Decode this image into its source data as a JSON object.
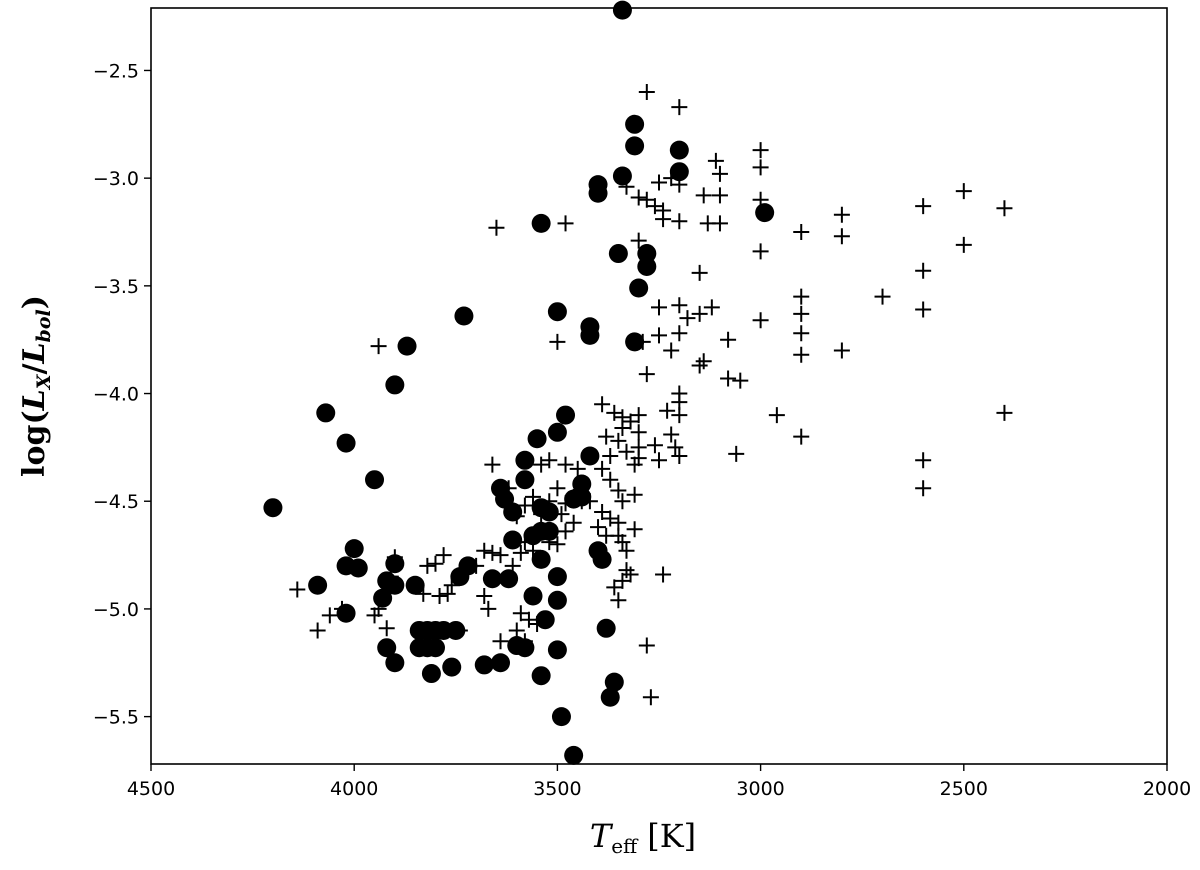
{
  "chart_data": {
    "type": "scatter",
    "title": "",
    "xlabel": "T_eff [K]",
    "xlabel_main": "T",
    "xlabel_sub": "eff",
    "xlabel_unit": "[K]",
    "ylabel": "log(L_X/L_bol)",
    "ylabel_prefix": "log(",
    "ylabel_num": "L",
    "ylabel_num_sub": "X",
    "ylabel_den": "L",
    "ylabel_den_sub": "bol",
    "xlim": [
      4500,
      2000
    ],
    "ylim": [
      -5.72,
      -2.21
    ],
    "x_inverted": true,
    "grid": false,
    "legend": "none",
    "xticks": [
      4500,
      4000,
      3500,
      3000,
      2500,
      2000
    ],
    "yticks": [
      -2.5,
      -3.0,
      -3.5,
      -4.0,
      -4.5,
      -5.0,
      -5.5
    ],
    "xtick_labels": [
      "4500",
      "4000",
      "3500",
      "3000",
      "2500",
      "2000"
    ],
    "ytick_labels": [
      "−2.5",
      "−3.0",
      "−3.5",
      "−4.0",
      "−4.5",
      "−5.0",
      "−5.5"
    ],
    "series": [
      {
        "marker": "filled-circle",
        "color": "#000000",
        "points": [
          [
            3340,
            -2.22
          ],
          [
            3310,
            -2.75
          ],
          [
            3310,
            -2.85
          ],
          [
            3200,
            -2.87
          ],
          [
            3200,
            -2.97
          ],
          [
            3340,
            -2.99
          ],
          [
            3400,
            -3.03
          ],
          [
            3400,
            -3.07
          ],
          [
            2990,
            -3.16
          ],
          [
            3540,
            -3.21
          ],
          [
            3350,
            -3.35
          ],
          [
            3280,
            -3.35
          ],
          [
            3280,
            -3.41
          ],
          [
            3300,
            -3.51
          ],
          [
            3500,
            -3.62
          ],
          [
            3730,
            -3.64
          ],
          [
            3420,
            -3.69
          ],
          [
            3420,
            -3.73
          ],
          [
            3310,
            -3.76
          ],
          [
            3870,
            -3.78
          ],
          [
            3900,
            -3.96
          ],
          [
            4070,
            -4.09
          ],
          [
            3480,
            -4.1
          ],
          [
            3500,
            -4.18
          ],
          [
            3550,
            -4.21
          ],
          [
            4020,
            -4.23
          ],
          [
            3420,
            -4.29
          ],
          [
            3580,
            -4.31
          ],
          [
            3950,
            -4.4
          ],
          [
            3580,
            -4.4
          ],
          [
            3440,
            -4.42
          ],
          [
            3640,
            -4.44
          ],
          [
            3440,
            -4.48
          ],
          [
            3460,
            -4.49
          ],
          [
            3630,
            -4.49
          ],
          [
            4200,
            -4.53
          ],
          [
            3540,
            -4.53
          ],
          [
            3610,
            -4.55
          ],
          [
            3520,
            -4.55
          ],
          [
            3540,
            -4.64
          ],
          [
            3520,
            -4.64
          ],
          [
            3560,
            -4.66
          ],
          [
            3610,
            -4.68
          ],
          [
            4000,
            -4.72
          ],
          [
            3400,
            -4.73
          ],
          [
            3390,
            -4.77
          ],
          [
            3540,
            -4.77
          ],
          [
            4020,
            -4.8
          ],
          [
            3990,
            -4.81
          ],
          [
            3720,
            -4.8
          ],
          [
            3900,
            -4.79
          ],
          [
            3740,
            -4.85
          ],
          [
            3500,
            -4.85
          ],
          [
            3620,
            -4.86
          ],
          [
            3660,
            -4.86
          ],
          [
            3920,
            -4.87
          ],
          [
            3900,
            -4.89
          ],
          [
            3850,
            -4.89
          ],
          [
            4090,
            -4.89
          ],
          [
            3930,
            -4.95
          ],
          [
            3560,
            -4.94
          ],
          [
            3500,
            -4.96
          ],
          [
            4020,
            -5.02
          ],
          [
            3530,
            -5.05
          ],
          [
            3380,
            -5.09
          ],
          [
            3840,
            -5.1
          ],
          [
            3820,
            -5.1
          ],
          [
            3800,
            -5.1
          ],
          [
            3780,
            -5.1
          ],
          [
            3750,
            -5.1
          ],
          [
            3920,
            -5.18
          ],
          [
            3840,
            -5.18
          ],
          [
            3820,
            -5.18
          ],
          [
            3800,
            -5.18
          ],
          [
            3580,
            -5.18
          ],
          [
            3600,
            -5.17
          ],
          [
            3500,
            -5.19
          ],
          [
            3900,
            -5.25
          ],
          [
            3760,
            -5.27
          ],
          [
            3680,
            -5.26
          ],
          [
            3640,
            -5.25
          ],
          [
            3810,
            -5.3
          ],
          [
            3540,
            -5.31
          ],
          [
            3360,
            -5.34
          ],
          [
            3370,
            -5.41
          ],
          [
            3490,
            -5.5
          ],
          [
            3460,
            -5.68
          ]
        ]
      },
      {
        "marker": "plus",
        "color": "#000000",
        "points": [
          [
            3280,
            -2.6
          ],
          [
            3200,
            -2.67
          ],
          [
            3000,
            -2.87
          ],
          [
            3000,
            -2.95
          ],
          [
            3110,
            -2.92
          ],
          [
            3100,
            -2.98
          ],
          [
            3000,
            -3.1
          ],
          [
            3300,
            -3.09
          ],
          [
            3280,
            -3.1
          ],
          [
            3260,
            -3.13
          ],
          [
            3240,
            -3.15
          ],
          [
            3200,
            -3.03
          ],
          [
            3140,
            -3.08
          ],
          [
            3100,
            -3.08
          ],
          [
            3250,
            -3.02
          ],
          [
            3220,
            -3.0
          ],
          [
            3200,
            -3.2
          ],
          [
            3130,
            -3.21
          ],
          [
            3100,
            -3.21
          ],
          [
            3240,
            -3.19
          ],
          [
            3330,
            -3.04
          ],
          [
            3650,
            -3.23
          ],
          [
            3480,
            -3.21
          ],
          [
            2800,
            -3.17
          ],
          [
            2800,
            -3.27
          ],
          [
            2900,
            -3.25
          ],
          [
            2600,
            -3.13
          ],
          [
            2500,
            -3.06
          ],
          [
            2400,
            -3.14
          ],
          [
            2500,
            -3.31
          ],
          [
            3000,
            -3.34
          ],
          [
            3300,
            -3.29
          ],
          [
            3280,
            -3.35
          ],
          [
            3150,
            -3.44
          ],
          [
            2600,
            -3.43
          ],
          [
            2700,
            -3.55
          ],
          [
            2900,
            -3.55
          ],
          [
            2900,
            -3.63
          ],
          [
            2900,
            -3.72
          ],
          [
            2900,
            -3.82
          ],
          [
            2800,
            -3.8
          ],
          [
            2600,
            -3.61
          ],
          [
            3000,
            -3.66
          ],
          [
            3150,
            -3.63
          ],
          [
            3120,
            -3.6
          ],
          [
            3250,
            -3.6
          ],
          [
            3200,
            -3.59
          ],
          [
            3180,
            -3.65
          ],
          [
            3200,
            -3.72
          ],
          [
            3250,
            -3.73
          ],
          [
            3080,
            -3.75
          ],
          [
            3940,
            -3.78
          ],
          [
            3500,
            -3.76
          ],
          [
            3290,
            -3.76
          ],
          [
            3220,
            -3.8
          ],
          [
            3150,
            -3.87
          ],
          [
            3140,
            -3.85
          ],
          [
            3080,
            -3.93
          ],
          [
            3050,
            -3.94
          ],
          [
            3280,
            -3.91
          ],
          [
            3200,
            -4.0
          ],
          [
            3200,
            -4.04
          ],
          [
            3390,
            -4.05
          ],
          [
            3230,
            -4.08
          ],
          [
            3200,
            -4.1
          ],
          [
            2960,
            -4.1
          ],
          [
            2400,
            -4.09
          ],
          [
            3360,
            -4.09
          ],
          [
            3340,
            -4.11
          ],
          [
            3320,
            -4.13
          ],
          [
            3300,
            -4.1
          ],
          [
            3340,
            -4.16
          ],
          [
            3300,
            -4.18
          ],
          [
            3350,
            -4.22
          ],
          [
            3380,
            -4.2
          ],
          [
            3220,
            -4.19
          ],
          [
            3210,
            -4.25
          ],
          [
            3260,
            -4.24
          ],
          [
            3300,
            -4.25
          ],
          [
            2900,
            -4.2
          ],
          [
            3060,
            -4.28
          ],
          [
            3200,
            -4.29
          ],
          [
            3250,
            -4.31
          ],
          [
            3330,
            -4.27
          ],
          [
            3300,
            -4.3
          ],
          [
            3370,
            -4.29
          ],
          [
            3420,
            -4.29
          ],
          [
            3450,
            -4.35
          ],
          [
            3480,
            -4.33
          ],
          [
            3520,
            -4.31
          ],
          [
            3540,
            -4.33
          ],
          [
            3660,
            -4.33
          ],
          [
            3310,
            -4.33
          ],
          [
            2600,
            -4.31
          ],
          [
            2600,
            -4.44
          ],
          [
            3390,
            -4.35
          ],
          [
            3370,
            -4.4
          ],
          [
            3350,
            -4.45
          ],
          [
            3340,
            -4.5
          ],
          [
            3310,
            -4.47
          ],
          [
            3420,
            -4.5
          ],
          [
            3440,
            -4.5
          ],
          [
            3460,
            -4.48
          ],
          [
            3480,
            -4.51
          ],
          [
            3490,
            -4.56
          ],
          [
            3500,
            -4.44
          ],
          [
            3520,
            -4.5
          ],
          [
            3540,
            -4.56
          ],
          [
            3560,
            -4.48
          ],
          [
            3580,
            -4.52
          ],
          [
            3600,
            -4.57
          ],
          [
            3620,
            -4.44
          ],
          [
            3390,
            -4.55
          ],
          [
            3370,
            -4.58
          ],
          [
            3350,
            -4.6
          ],
          [
            3400,
            -4.62
          ],
          [
            3380,
            -4.66
          ],
          [
            3350,
            -4.66
          ],
          [
            3340,
            -4.69
          ],
          [
            3310,
            -4.63
          ],
          [
            3330,
            -4.73
          ],
          [
            3320,
            -4.84
          ],
          [
            3340,
            -4.87
          ],
          [
            3330,
            -4.82
          ],
          [
            3360,
            -4.9
          ],
          [
            3350,
            -4.96
          ],
          [
            3240,
            -4.84
          ],
          [
            3460,
            -4.6
          ],
          [
            3480,
            -4.64
          ],
          [
            3500,
            -4.7
          ],
          [
            3520,
            -4.69
          ],
          [
            3560,
            -4.73
          ],
          [
            3580,
            -4.69
          ],
          [
            3590,
            -4.74
          ],
          [
            3610,
            -4.8
          ],
          [
            3640,
            -4.75
          ],
          [
            3660,
            -4.74
          ],
          [
            3680,
            -4.73
          ],
          [
            3700,
            -4.8
          ],
          [
            3780,
            -4.75
          ],
          [
            3800,
            -4.79
          ],
          [
            3820,
            -4.8
          ],
          [
            3850,
            -4.89
          ],
          [
            3760,
            -4.89
          ],
          [
            3790,
            -4.94
          ],
          [
            3830,
            -4.93
          ],
          [
            3770,
            -4.93
          ],
          [
            3680,
            -4.94
          ],
          [
            3670,
            -5.0
          ],
          [
            3590,
            -5.02
          ],
          [
            3570,
            -5.05
          ],
          [
            3550,
            -5.07
          ],
          [
            3600,
            -5.1
          ],
          [
            3640,
            -5.15
          ],
          [
            3580,
            -5.15
          ],
          [
            3740,
            -5.1
          ],
          [
            3900,
            -4.76
          ],
          [
            3910,
            -4.85
          ],
          [
            3930,
            -4.93
          ],
          [
            3940,
            -5.0
          ],
          [
            3950,
            -5.03
          ],
          [
            3920,
            -5.09
          ],
          [
            4030,
            -5.0
          ],
          [
            4060,
            -5.03
          ],
          [
            4090,
            -5.1
          ],
          [
            4140,
            -4.91
          ],
          [
            3280,
            -5.17
          ],
          [
            3270,
            -5.41
          ]
        ]
      }
    ]
  }
}
